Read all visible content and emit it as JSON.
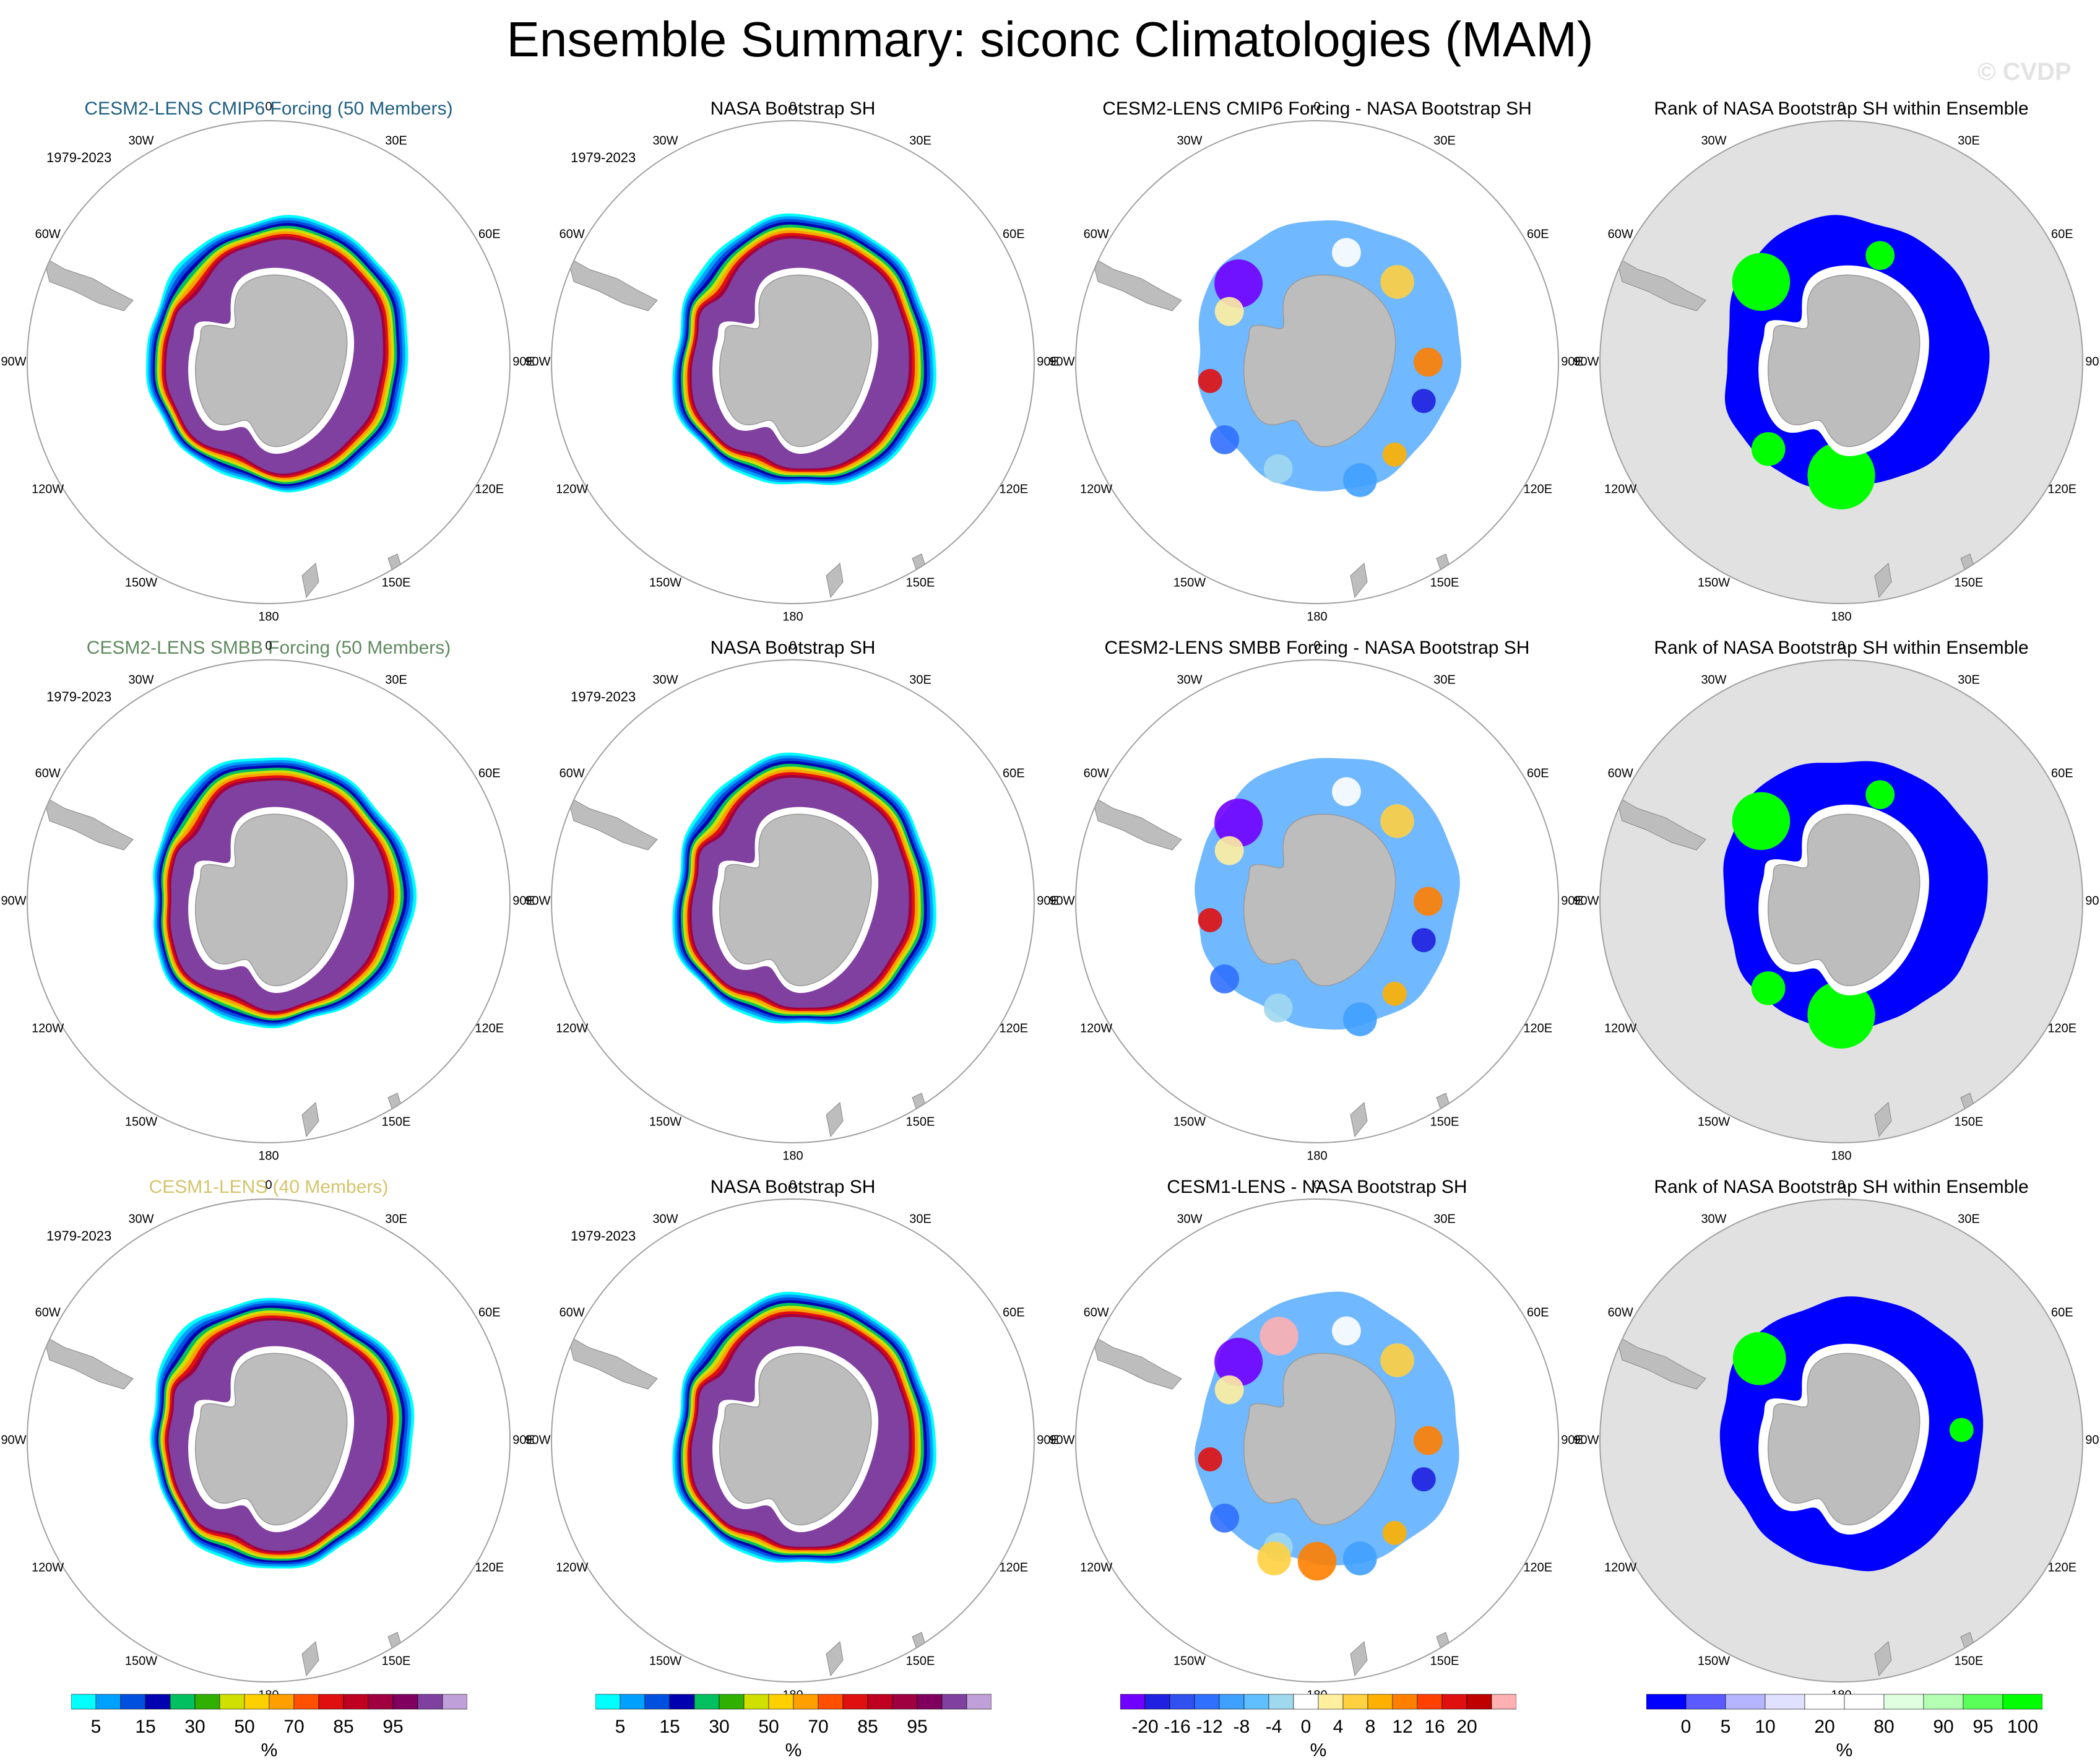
{
  "title": "Ensemble Summary: siconc Climatologies (MAM)",
  "watermark": "© CVDP",
  "longitude_labels": [
    "0",
    "30E",
    "60E",
    "90E",
    "120E",
    "150E",
    "180",
    "150W",
    "120W",
    "90W",
    "60W",
    "30W"
  ],
  "rows": [
    {
      "panels": [
        {
          "title": "CESM2-LENS CMIP6 Forcing (50 Members)",
          "title_color": "#1f5f82",
          "period": "1979-2023",
          "kind": "clim",
          "variant": 0
        },
        {
          "title": "NASA Bootstrap SH",
          "title_color": "#000000",
          "period": "1979-2023",
          "kind": "clim",
          "variant": 1
        },
        {
          "title": "CESM2-LENS CMIP6 Forcing - NASA Bootstrap SH",
          "title_color": "#000000",
          "period": "",
          "kind": "diff",
          "variant": 0
        },
        {
          "title": "Rank of NASA Bootstrap SH within Ensemble",
          "title_color": "#000000",
          "period": "",
          "kind": "rank",
          "variant": 0
        }
      ]
    },
    {
      "panels": [
        {
          "title": "CESM2-LENS SMBB Forcing (50 Members)",
          "title_color": "#5f8a5f",
          "period": "1979-2023",
          "kind": "clim",
          "variant": 2
        },
        {
          "title": "NASA Bootstrap SH",
          "title_color": "#000000",
          "period": "1979-2023",
          "kind": "clim",
          "variant": 1
        },
        {
          "title": "CESM2-LENS SMBB Forcing - NASA Bootstrap SH",
          "title_color": "#000000",
          "period": "",
          "kind": "diff",
          "variant": 1
        },
        {
          "title": "Rank of NASA Bootstrap SH within Ensemble",
          "title_color": "#000000",
          "period": "",
          "kind": "rank",
          "variant": 1
        }
      ]
    },
    {
      "panels": [
        {
          "title": "CESM1-LENS (40 Members)",
          "title_color": "#d4c46a",
          "period": "1979-2023",
          "kind": "clim",
          "variant": 3
        },
        {
          "title": "NASA Bootstrap SH",
          "title_color": "#000000",
          "period": "1979-2023",
          "kind": "clim",
          "variant": 1
        },
        {
          "title": "CESM1-LENS - NASA Bootstrap SH",
          "title_color": "#000000",
          "period": "",
          "kind": "diff",
          "variant": 2
        },
        {
          "title": "Rank of NASA Bootstrap SH within Ensemble",
          "title_color": "#000000",
          "period": "",
          "kind": "rank",
          "variant": 2
        }
      ]
    }
  ],
  "colorbars": [
    {
      "name": "concentration",
      "colors": [
        "#00ffff",
        "#00a0ff",
        "#0050e0",
        "#0000b0",
        "#00c060",
        "#30b000",
        "#d0e000",
        "#ffd000",
        "#ffa000",
        "#ff5000",
        "#e01010",
        "#c00020",
        "#a00040",
        "#800060",
        "#8040a0",
        "#c0a0d8"
      ],
      "labels": [
        "5",
        "15",
        "30",
        "50",
        "70",
        "85",
        "95"
      ],
      "units": "%"
    },
    {
      "name": "concentration",
      "colors": [
        "#00ffff",
        "#00a0ff",
        "#0050e0",
        "#0000b0",
        "#00c060",
        "#30b000",
        "#d0e000",
        "#ffd000",
        "#ffa000",
        "#ff5000",
        "#e01010",
        "#c00020",
        "#a00040",
        "#800060",
        "#8040a0",
        "#c0a0d8"
      ],
      "labels": [
        "5",
        "15",
        "30",
        "50",
        "70",
        "85",
        "95"
      ],
      "units": "%"
    },
    {
      "name": "difference",
      "colors": [
        "#7000ff",
        "#2020e0",
        "#3050f0",
        "#3070ff",
        "#40a0ff",
        "#60c0ff",
        "#a0d8f0",
        "#ffffff",
        "#fff0a0",
        "#ffd040",
        "#ffb000",
        "#ff8000",
        "#ff4000",
        "#e01010",
        "#c00000",
        "#ffb0b0"
      ],
      "labels": [
        "-20",
        "-16",
        "-12",
        "-8",
        "-4",
        "0",
        "4",
        "8",
        "12",
        "16",
        "20"
      ],
      "units": "%"
    },
    {
      "name": "rank",
      "colors": [
        "#0000ff",
        "#5a5aff",
        "#b4b4ff",
        "#e0e0ff",
        "#ffffff",
        "#ffffff",
        "#e0ffe0",
        "#b4ffb4",
        "#5aff5a",
        "#00ff00"
      ],
      "labels": [
        "0",
        "5",
        "10",
        "20",
        "80",
        "90",
        "95",
        "100"
      ],
      "units": "%"
    }
  ]
}
